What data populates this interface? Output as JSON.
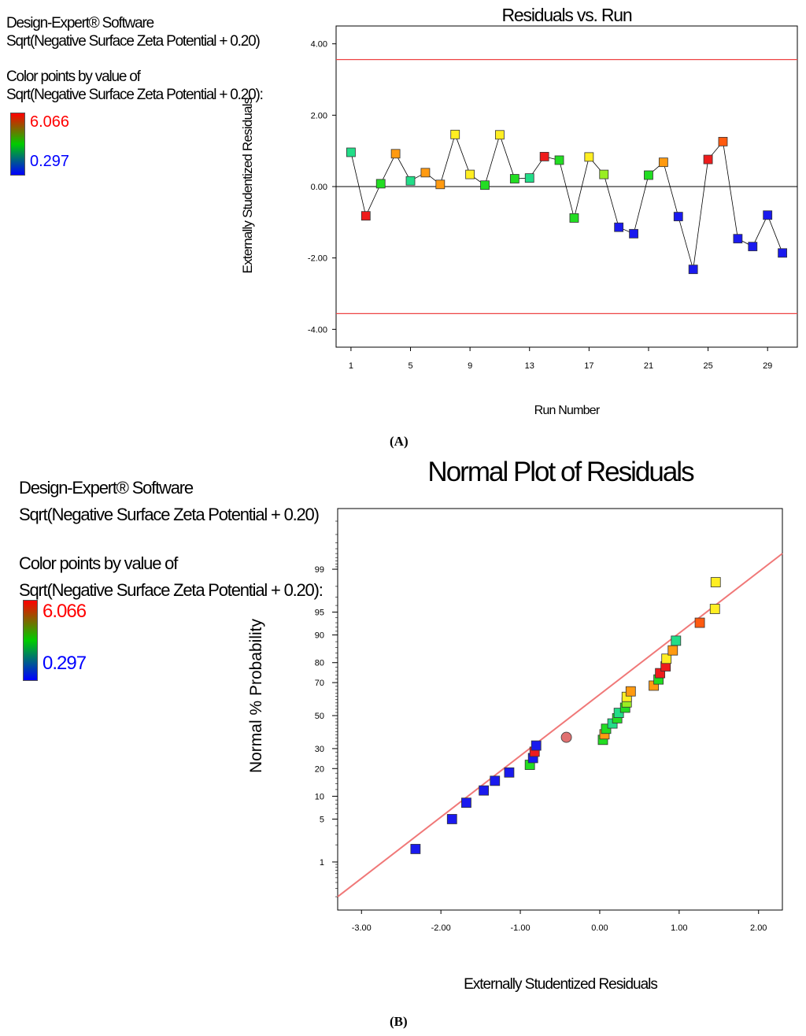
{
  "panel_a": {
    "software": "Design-Expert® Software",
    "response": "Sqrt(Negative Surface Zeta Potential + 0.20)",
    "color_by_label": "Color points by value of",
    "color_by_response": "Sqrt(Negative Surface Zeta Potential + 0.20):",
    "color_max": "6.066",
    "color_min": "0.297",
    "sublabel": "(A)"
  },
  "panel_b": {
    "software": "Design-Expert® Software",
    "response": "Sqrt(Negative Surface Zeta Potential + 0.20)",
    "color_by_label": "Color points by value of",
    "color_by_response": "Sqrt(Negative Surface Zeta Potential + 0.20):",
    "color_max": "6.066",
    "color_min": "0.297",
    "sublabel": "(B)"
  },
  "colors": {
    "red": "#ee1c1c",
    "orange_red": "#ff5a10",
    "orange": "#ff9a10",
    "yellow": "#ffee22",
    "lime": "#99ee22",
    "green": "#22dd22",
    "teal": "#22dd88",
    "blue": "#1a1aee",
    "limit_line": "#ee4444",
    "fit_line": "#f07878",
    "outlier": "#e07070"
  },
  "chart_data": [
    {
      "type": "line",
      "title": "Residuals vs. Run",
      "xlabel": "Run Number",
      "ylabel": "Externally Studentized Residuals",
      "xlim": [
        0,
        31
      ],
      "ylim": [
        -4.5,
        4.5
      ],
      "xticks": [
        1,
        5,
        9,
        13,
        17,
        21,
        25,
        29
      ],
      "xtick_labels": [
        "1",
        "5",
        "9",
        "13",
        "17",
        "21",
        "25",
        "29"
      ],
      "yticks": [
        -4,
        -2,
        0,
        2,
        4
      ],
      "ytick_labels": [
        "-4.00",
        "-2.00",
        "0.00",
        "2.00",
        "4.00"
      ],
      "control_limits": [
        3.56,
        -3.56
      ],
      "zero_line": 0,
      "runs": [
        1,
        2,
        3,
        4,
        5,
        6,
        7,
        8,
        9,
        10,
        11,
        12,
        13,
        14,
        15,
        16,
        17,
        18,
        19,
        20,
        21,
        22,
        23,
        24,
        25,
        26,
        27,
        28,
        29,
        30
      ],
      "residuals": [
        0.96,
        -0.82,
        0.08,
        0.92,
        0.16,
        0.39,
        0.06,
        1.46,
        0.34,
        0.04,
        1.45,
        0.22,
        0.24,
        0.84,
        0.74,
        -0.88,
        0.83,
        0.34,
        -1.14,
        -1.32,
        0.32,
        0.68,
        -0.84,
        -2.32,
        0.76,
        1.26,
        -1.46,
        -1.68,
        -0.8,
        -1.86
      ],
      "point_colors": [
        "teal",
        "red",
        "green",
        "orange",
        "teal",
        "orange",
        "orange",
        "yellow",
        "yellow",
        "green",
        "yellow",
        "green",
        "teal",
        "red",
        "green",
        "green",
        "yellow",
        "lime",
        "blue",
        "blue",
        "green",
        "orange",
        "blue",
        "blue",
        "red",
        "orange_red",
        "blue",
        "blue",
        "blue",
        "blue"
      ]
    },
    {
      "type": "scatter",
      "title": "Normal Plot of Residuals",
      "xlabel": "Externally Studentized Residuals",
      "ylabel": "Normal % Probability",
      "xlim": [
        -3.3,
        2.3
      ],
      "xticks": [
        -3,
        -2,
        -1,
        0,
        1,
        2
      ],
      "xtick_labels": [
        "-3.00",
        "-2.00",
        "-1.00",
        "0.00",
        "1.00",
        "2.00"
      ],
      "yticks": [
        1,
        5,
        10,
        20,
        30,
        50,
        70,
        80,
        90,
        95,
        99
      ],
      "ytick_labels": [
        "1",
        "5",
        "10",
        "20",
        "30",
        "50",
        "70",
        "80",
        "90",
        "95",
        "99"
      ],
      "fit_line": {
        "x": [
          -3.3,
          2.3
        ],
        "prob": [
          0.2,
          99.5
        ]
      },
      "points": [
        {
          "x": -2.32,
          "prob": 1.7,
          "color": "blue",
          "shape": "square"
        },
        {
          "x": -1.86,
          "prob": 5,
          "color": "blue",
          "shape": "square"
        },
        {
          "x": -1.68,
          "prob": 8.3,
          "color": "blue",
          "shape": "square"
        },
        {
          "x": -1.46,
          "prob": 11.7,
          "color": "blue",
          "shape": "square"
        },
        {
          "x": -1.32,
          "prob": 15,
          "color": "blue",
          "shape": "square"
        },
        {
          "x": -1.14,
          "prob": 18.3,
          "color": "blue",
          "shape": "square"
        },
        {
          "x": -0.88,
          "prob": 21.7,
          "color": "green",
          "shape": "square"
        },
        {
          "x": -0.84,
          "prob": 25,
          "color": "blue",
          "shape": "square"
        },
        {
          "x": -0.82,
          "prob": 28.3,
          "color": "red",
          "shape": "square"
        },
        {
          "x": -0.8,
          "prob": 31.7,
          "color": "blue",
          "shape": "square"
        },
        {
          "x": -0.42,
          "prob": 36.5,
          "color": "outlier",
          "shape": "circle"
        },
        {
          "x": 0.04,
          "prob": 35,
          "color": "green",
          "shape": "square"
        },
        {
          "x": 0.06,
          "prob": 38.3,
          "color": "orange",
          "shape": "square"
        },
        {
          "x": 0.08,
          "prob": 41.7,
          "color": "green",
          "shape": "square"
        },
        {
          "x": 0.16,
          "prob": 45,
          "color": "teal",
          "shape": "square"
        },
        {
          "x": 0.22,
          "prob": 48.3,
          "color": "green",
          "shape": "square"
        },
        {
          "x": 0.24,
          "prob": 51.7,
          "color": "teal",
          "shape": "square"
        },
        {
          "x": 0.32,
          "prob": 55,
          "color": "green",
          "shape": "square"
        },
        {
          "x": 0.34,
          "prob": 58.3,
          "color": "lime",
          "shape": "square"
        },
        {
          "x": 0.34,
          "prob": 61.7,
          "color": "yellow",
          "shape": "square"
        },
        {
          "x": 0.39,
          "prob": 65,
          "color": "orange",
          "shape": "square"
        },
        {
          "x": 0.68,
          "prob": 68.3,
          "color": "orange",
          "shape": "square"
        },
        {
          "x": 0.74,
          "prob": 71.7,
          "color": "green",
          "shape": "square"
        },
        {
          "x": 0.76,
          "prob": 75,
          "color": "red",
          "shape": "square"
        },
        {
          "x": 0.83,
          "prob": 78.3,
          "color": "red",
          "shape": "square"
        },
        {
          "x": 0.84,
          "prob": 81.7,
          "color": "yellow",
          "shape": "square"
        },
        {
          "x": 0.92,
          "prob": 85,
          "color": "orange",
          "shape": "square"
        },
        {
          "x": 0.96,
          "prob": 88.3,
          "color": "teal",
          "shape": "square"
        },
        {
          "x": 1.26,
          "prob": 93,
          "color": "orange_red",
          "shape": "square"
        },
        {
          "x": 1.45,
          "prob": 95.5,
          "color": "yellow",
          "shape": "square"
        },
        {
          "x": 1.46,
          "prob": 98.3,
          "color": "yellow",
          "shape": "square"
        }
      ]
    }
  ]
}
